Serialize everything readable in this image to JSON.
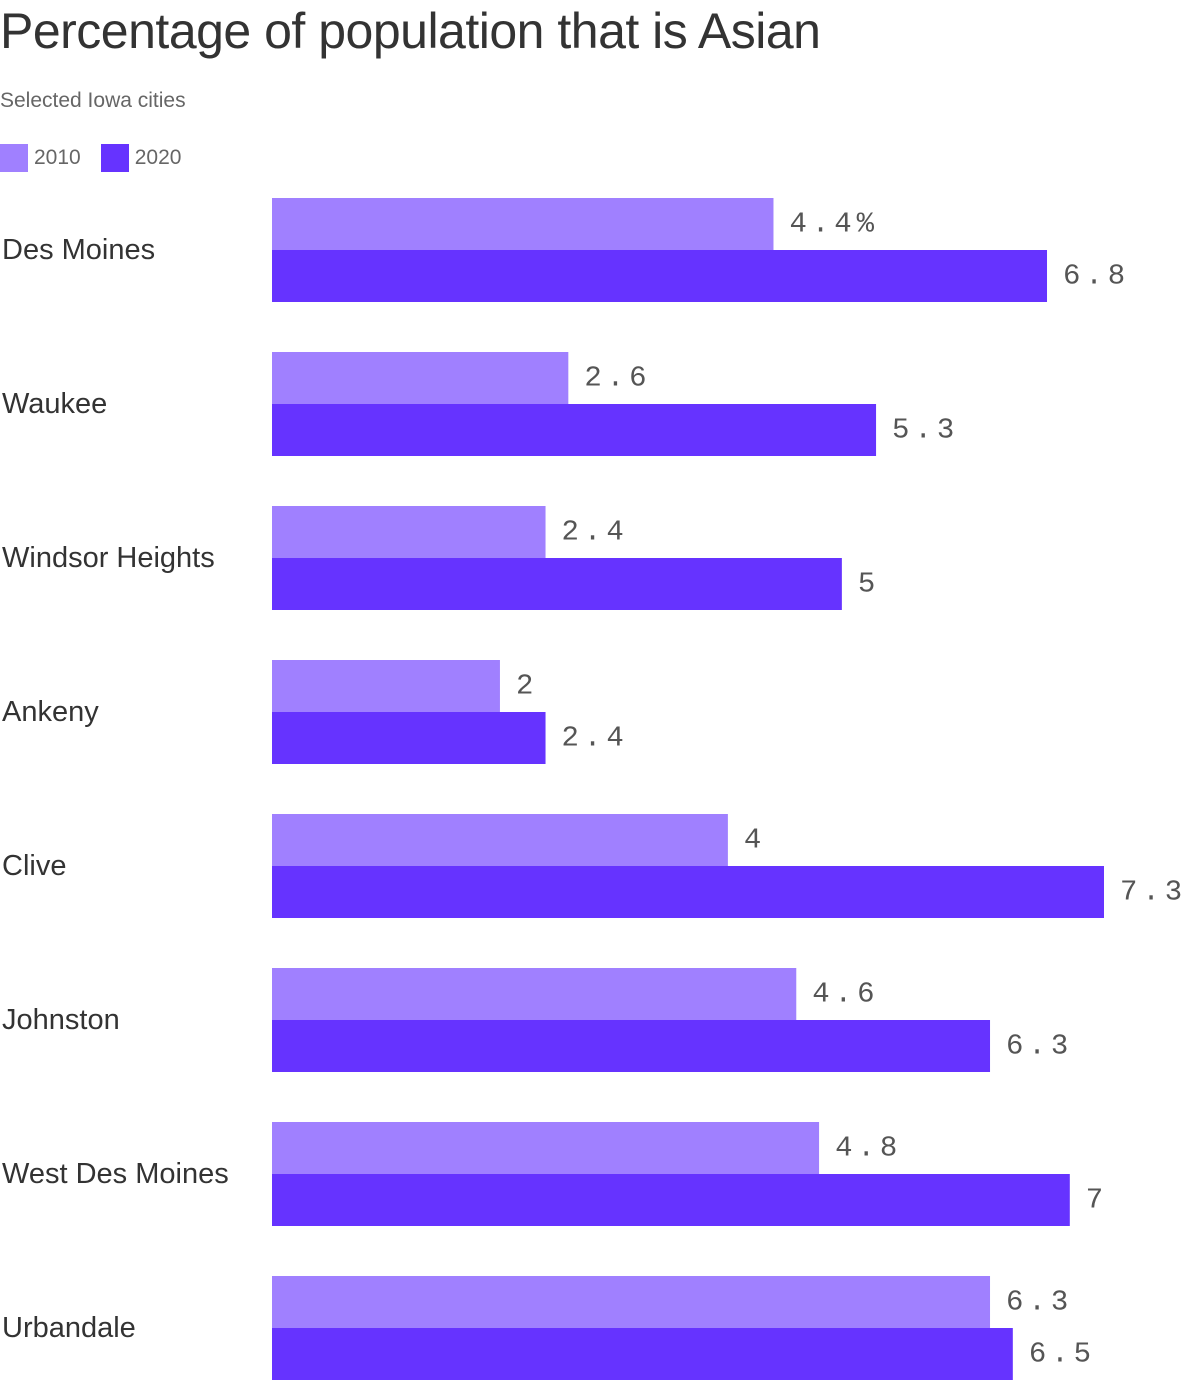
{
  "chart_data": {
    "type": "bar",
    "orientation": "horizontal",
    "title": "Percentage of population that is Asian",
    "subtitle": "Selected Iowa cities",
    "categories": [
      "Des Moines",
      "Waukee",
      "Windsor Heights",
      "Ankeny",
      "Clive",
      "Johnston",
      "West Des Moines",
      "Urbandale"
    ],
    "series": [
      {
        "name": "2010",
        "color": "#a080ff",
        "values": [
          4.4,
          2.6,
          2.4,
          2,
          4,
          4.6,
          4.8,
          6.3
        ],
        "labels": [
          "4.4%",
          "2.6",
          "2.4",
          "2",
          "4",
          "4.6",
          "4.8",
          "6.3"
        ]
      },
      {
        "name": "2020",
        "color": "#6633ff",
        "values": [
          6.8,
          5.3,
          5,
          2.4,
          7.3,
          6.3,
          7,
          6.5
        ],
        "labels": [
          "6.8",
          "5.3",
          "5",
          "2.4",
          "7.3",
          "6.3",
          "7",
          "6.5"
        ]
      }
    ],
    "xlim": [
      0,
      7.3
    ],
    "grid": false,
    "legend": "top-left"
  }
}
